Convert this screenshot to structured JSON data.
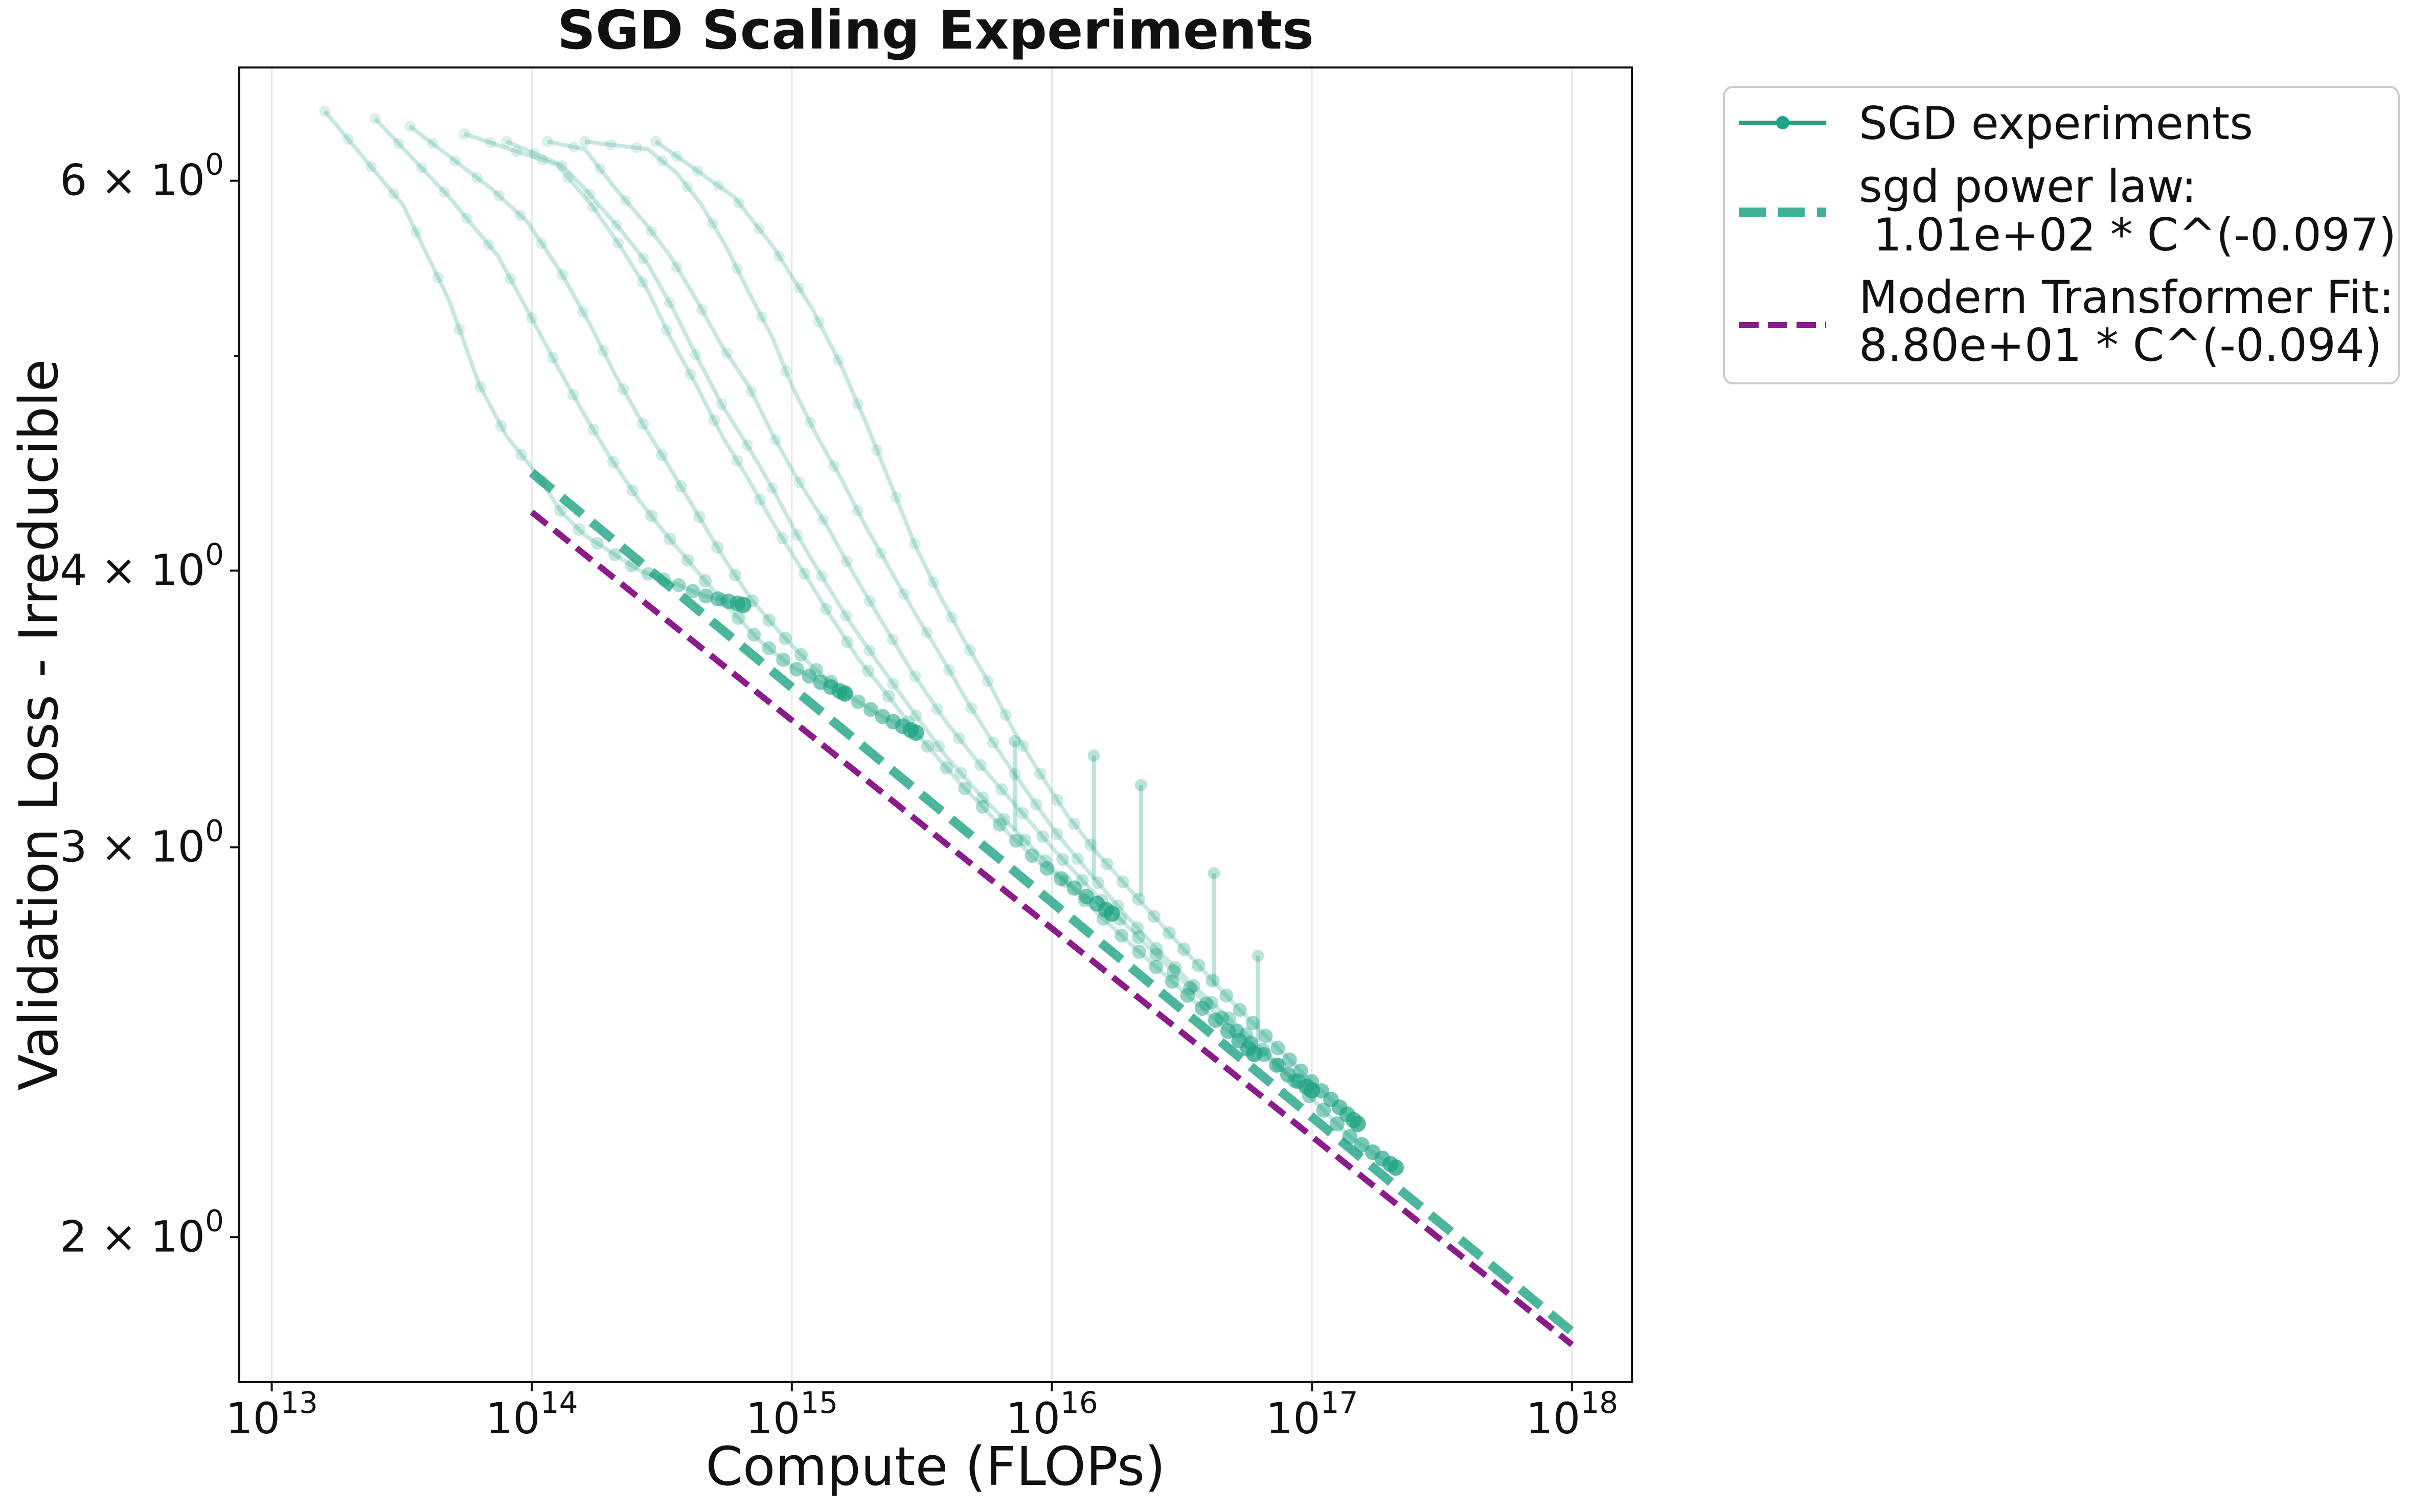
{
  "chart_data": {
    "type": "line",
    "title": "SGD Scaling Experiments",
    "xlabel": "Compute (FLOPs)",
    "ylabel": "Validation Loss - Irreducible",
    "xscale": "log",
    "yscale": "log",
    "xlim": [
      7500000000000.0,
      1.7e+18
    ],
    "ylim": [
      1.72,
      6.75
    ],
    "grid": "vertical",
    "legend_position": "outside-top-right",
    "x_ticks": [
      {
        "value": 10000000000000.0,
        "base": "10",
        "exp": "13"
      },
      {
        "value": 100000000000000.0,
        "base": "10",
        "exp": "14"
      },
      {
        "value": 1000000000000000.0,
        "base": "10",
        "exp": "15"
      },
      {
        "value": 1e+16,
        "base": "10",
        "exp": "16"
      },
      {
        "value": 1e+17,
        "base": "10",
        "exp": "17"
      },
      {
        "value": 1e+18,
        "base": "10",
        "exp": "18"
      }
    ],
    "y_ticks": [
      {
        "value": 2,
        "mant": "2",
        "base": "10",
        "exp": "0"
      },
      {
        "value": 3,
        "mant": "3",
        "base": "10",
        "exp": "0"
      },
      {
        "value": 4,
        "mant": "4",
        "base": "10",
        "exp": "0"
      },
      {
        "value": 6,
        "mant": "6",
        "base": "10",
        "exp": "0"
      }
    ],
    "y_minor_ticks": [
      5
    ],
    "colors": {
      "sgd": "#1fa384",
      "modern": "#8b1a8b"
    },
    "legend": [
      {
        "label": "SGD experiments",
        "style": "line-marker"
      },
      {
        "label": "sgd power law:",
        "label2": " 1.01e+02 * C^(-0.097)",
        "style": "dashed-thick"
      },
      {
        "label": "Modern Transformer Fit:",
        "label2": "8.80e+01 * C^(-0.094)",
        "style": "dashed-thin"
      }
    ],
    "fits": [
      {
        "name": "sgd power law",
        "coef": 101,
        "exp": -0.097,
        "x_range": [
          100000000000000.0,
          1e+18
        ]
      },
      {
        "name": "Modern Transformer Fit",
        "coef": 88,
        "exp": -0.094,
        "x_range": [
          100000000000000.0,
          1e+18
        ]
      }
    ],
    "series": [
      {
        "name": "run-1",
        "start": 16000000000000.0,
        "end": 650000000000000.0,
        "points": [
          [
            16000000000000.0,
            6.45
          ],
          [
            32000000000000.0,
            5.85
          ],
          [
            48000000000000.0,
            5.3
          ],
          [
            63000000000000.0,
            4.85
          ],
          [
            80000000000000.0,
            4.6
          ],
          [
            105000000000000.0,
            4.42
          ],
          [
            130000000000000.0,
            4.25
          ],
          [
            160000000000000.0,
            4.15
          ],
          [
            200000000000000.0,
            4.08
          ],
          [
            260000000000000.0,
            4.0
          ],
          [
            350000000000000.0,
            3.95
          ],
          [
            450000000000000.0,
            3.9
          ],
          [
            650000000000000.0,
            3.86
          ]
        ]
      },
      {
        "name": "run-2",
        "start": 25000000000000.0,
        "end": 1600000000000000.0,
        "points": [
          [
            25000000000000.0,
            6.4
          ],
          [
            48000000000000.0,
            5.9
          ],
          [
            74000000000000.0,
            5.55
          ],
          [
            100000000000000.0,
            5.2
          ],
          [
            125000000000000.0,
            4.95
          ],
          [
            160000000000000.0,
            4.7
          ],
          [
            200000000000000.0,
            4.5
          ],
          [
            260000000000000.0,
            4.3
          ],
          [
            330000000000000.0,
            4.15
          ],
          [
            430000000000000.0,
            4.0
          ],
          [
            570000000000000.0,
            3.85
          ],
          [
            750000000000000.0,
            3.72
          ],
          [
            1000000000000000.0,
            3.62
          ],
          [
            1300000000000000.0,
            3.56
          ],
          [
            1600000000000000.0,
            3.52
          ]
        ]
      },
      {
        "name": "run-3",
        "start": 34000000000000.0,
        "end": 3000000000000000.0,
        "points": [
          [
            34000000000000.0,
            6.35
          ],
          [
            70000000000000.0,
            5.95
          ],
          [
            96000000000000.0,
            5.75
          ],
          [
            130000000000000.0,
            5.45
          ],
          [
            170000000000000.0,
            5.15
          ],
          [
            210000000000000.0,
            4.9
          ],
          [
            270000000000000.0,
            4.65
          ],
          [
            340000000000000.0,
            4.45
          ],
          [
            430000000000000.0,
            4.25
          ],
          [
            550000000000000.0,
            4.05
          ],
          [
            700000000000000.0,
            3.88
          ],
          [
            900000000000000.0,
            3.75
          ],
          [
            1200000000000000.0,
            3.62
          ],
          [
            1600000000000000.0,
            3.52
          ],
          [
            2200000000000000.0,
            3.44
          ],
          [
            3000000000000000.0,
            3.38
          ]
        ]
      },
      {
        "name": "run-4",
        "start": 55000000000000.0,
        "end": 1.7e+16,
        "points": [
          [
            55000000000000.0,
            6.3
          ],
          [
            125000000000000.0,
            6.1
          ],
          [
            170000000000000.0,
            5.85
          ],
          [
            220000000000000.0,
            5.6
          ],
          [
            280000000000000.0,
            5.35
          ],
          [
            340000000000000.0,
            5.1
          ],
          [
            430000000000000.0,
            4.85
          ],
          [
            540000000000000.0,
            4.6
          ],
          [
            680000000000000.0,
            4.4
          ],
          [
            850000000000000.0,
            4.2
          ],
          [
            1100000000000000.0,
            4.0
          ],
          [
            1400000000000000.0,
            3.82
          ],
          [
            1800000000000000.0,
            3.65
          ],
          [
            2400000000000000.0,
            3.5
          ],
          [
            3200000000000000.0,
            3.35
          ],
          [
            4500000000000000.0,
            3.2
          ],
          [
            6500000000000000.0,
            3.06
          ],
          [
            9000000000000000.0,
            2.95
          ],
          [
            1.3e+16,
            2.86
          ],
          [
            1.7e+16,
            2.8
          ]
        ]
      },
      {
        "name": "run-5",
        "start": 80000000000000.0,
        "end": 6e+16,
        "points": [
          [
            80000000000000.0,
            6.25
          ],
          [
            130000000000000.0,
            6.1
          ],
          [
            160000000000000.0,
            5.95
          ],
          [
            220000000000000.0,
            5.7
          ],
          [
            280000000000000.0,
            5.5
          ],
          [
            350000000000000.0,
            5.25
          ],
          [
            430000000000000.0,
            5.0
          ],
          [
            540000000000000.0,
            4.75
          ],
          [
            680000000000000.0,
            4.55
          ],
          [
            850000000000000.0,
            4.35
          ],
          [
            1050000000000000.0,
            4.15
          ],
          [
            1350000000000000.0,
            3.95
          ],
          [
            1700000000000000.0,
            3.78
          ],
          [
            2200000000000000.0,
            3.62
          ],
          [
            2900000000000000.0,
            3.46
          ],
          [
            3900000000000000.0,
            3.3
          ],
          [
            5400000000000000.0,
            3.16
          ],
          [
            7500000000000000.0,
            3.04
          ],
          [
            1.05e+16,
            2.92
          ],
          [
            1.5e+16,
            2.8
          ],
          [
            2.1e+16,
            2.7
          ],
          [
            3e+16,
            2.6
          ],
          [
            4.2e+16,
            2.51
          ],
          [
            6e+16,
            2.42
          ]
        ]
      },
      {
        "name": "run-6",
        "start": 115000000000000.0,
        "end": 1e+17,
        "points": [
          [
            115000000000000.0,
            6.25
          ],
          [
            160000000000000.0,
            6.2
          ],
          [
            210000000000000.0,
            5.95
          ],
          [
            270000000000000.0,
            5.75
          ],
          [
            340000000000000.0,
            5.55
          ],
          [
            430000000000000.0,
            5.3
          ],
          [
            540000000000000.0,
            5.05
          ],
          [
            680000000000000.0,
            4.85
          ],
          [
            850000000000000.0,
            4.6
          ],
          [
            1050000000000000.0,
            4.4
          ],
          [
            1350000000000000.0,
            4.2
          ],
          [
            1700000000000000.0,
            4.0
          ],
          [
            2200000000000000.0,
            3.8
          ],
          [
            2900000000000000.0,
            3.6
          ],
          [
            3900000000000000.0,
            3.42
          ],
          [
            5400000000000000.0,
            3.26
          ],
          [
            7500000000000000.0,
            3.12
          ],
          [
            1.05e+16,
            2.98
          ],
          [
            1.5e+16,
            2.85
          ],
          [
            2.1e+16,
            2.74
          ],
          [
            3e+16,
            2.63
          ],
          [
            4.2e+16,
            2.53
          ],
          [
            6e+16,
            2.44
          ],
          [
            8e+16,
            2.37
          ],
          [
            1e+17,
            2.33
          ]
        ]
      },
      {
        "name": "run-7",
        "start": 160000000000000.0,
        "end": 2.1e+17,
        "points": [
          [
            160000000000000.0,
            6.25
          ],
          [
            280000000000000.0,
            6.2
          ],
          [
            360000000000000.0,
            6.05
          ],
          [
            450000000000000.0,
            5.85
          ],
          [
            560000000000000.0,
            5.6
          ],
          [
            680000000000000.0,
            5.35
          ],
          [
            840000000000000.0,
            5.1
          ],
          [
            1000000000000000.0,
            4.85
          ],
          [
            1250000000000000.0,
            4.6
          ],
          [
            1550000000000000.0,
            4.4
          ],
          [
            1900000000000000.0,
            4.2
          ],
          [
            2400000000000000.0,
            4.0
          ],
          [
            3000000000000000.0,
            3.82
          ],
          [
            3800000000000000.0,
            3.65
          ],
          [
            4800000000000000.0,
            3.48
          ],
          [
            6200000000000000.0,
            3.32
          ],
          [
            8000000000000000.0,
            3.18
          ],
          [
            1.05e+16,
            3.04
          ],
          [
            1.4e+16,
            2.92
          ],
          [
            1.9e+16,
            2.8
          ],
          [
            2.6e+16,
            2.69
          ],
          [
            3.6e+16,
            2.59
          ],
          [
            5e+16,
            2.5
          ],
          [
            7e+16,
            2.41
          ],
          [
            1e+17,
            2.31
          ],
          [
            1.4e+17,
            2.22
          ],
          [
            2.1e+17,
            2.15
          ]
        ]
      },
      {
        "name": "run-8",
        "start": 300000000000000.0,
        "end": 1.5e+17,
        "points": [
          [
            300000000000000.0,
            6.25
          ],
          [
            600000000000000.0,
            5.9
          ],
          [
            850000000000000.0,
            5.6
          ],
          [
            1200000000000000.0,
            5.25
          ],
          [
            1550000000000000.0,
            4.95
          ],
          [
            1950000000000000.0,
            4.65
          ],
          [
            2450000000000000.0,
            4.35
          ],
          [
            3000000000000000.0,
            4.1
          ],
          [
            3700000000000000.0,
            3.9
          ],
          [
            4600000000000000.0,
            3.72
          ],
          [
            5800000000000000.0,
            3.55
          ],
          [
            7200000000000000.0,
            3.38
          ],
          [
            9000000000000000.0,
            3.24
          ],
          [
            1.15e+16,
            3.1
          ],
          [
            1.5e+16,
            2.98
          ],
          [
            2e+16,
            2.87
          ],
          [
            2.7e+16,
            2.76
          ],
          [
            3.7e+16,
            2.65
          ],
          [
            5e+16,
            2.55
          ],
          [
            7e+16,
            2.45
          ],
          [
            1e+17,
            2.35
          ],
          [
            1.5e+17,
            2.25
          ]
        ]
      }
    ],
    "spikes": [
      [
        7200000000000000.0,
        3.05,
        3.35
      ],
      [
        1.45e+16,
        2.9,
        3.3
      ],
      [
        2.2e+16,
        2.85,
        3.2
      ],
      [
        4.2e+16,
        2.6,
        2.92
      ],
      [
        6.2e+16,
        2.45,
        2.68
      ]
    ]
  }
}
